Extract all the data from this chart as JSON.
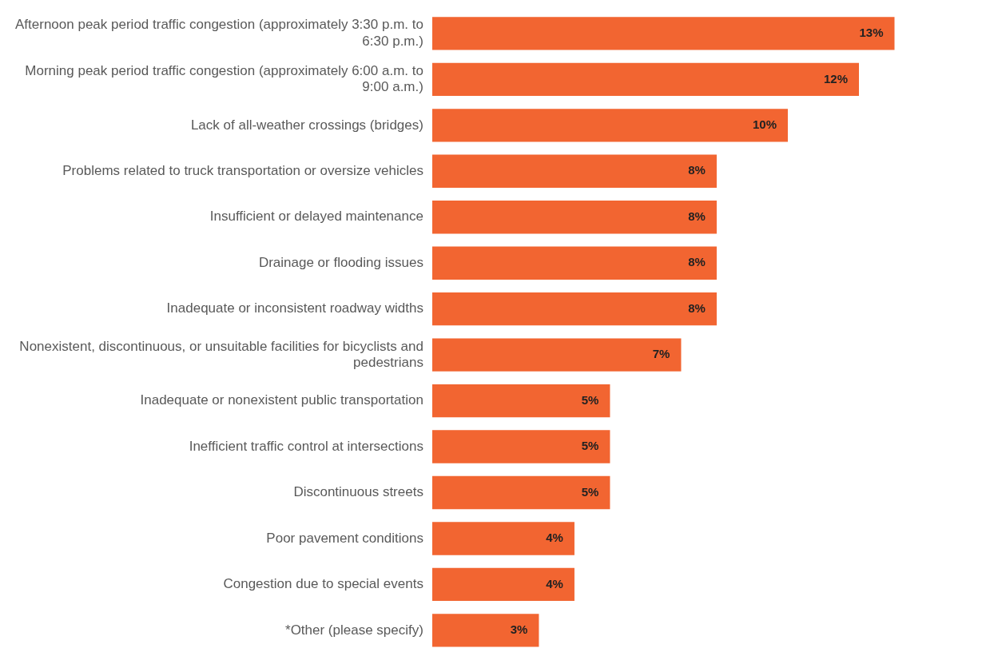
{
  "chart_data": {
    "type": "bar",
    "orientation": "horizontal",
    "data_labels": true,
    "value_labels": [
      "13%",
      "12%",
      "10%",
      "8%",
      "8%",
      "8%",
      "8%",
      "7%",
      "5%",
      "5%",
      "5%",
      "4%",
      "4%",
      "3%"
    ],
    "categories": [
      "Afternoon peak period traffic congestion (approximately 3:30 p.m. to 6:30 p.m.)",
      "Morning peak period traffic congestion (approximately 6:00 a.m. to 9:00 a.m.)",
      "Lack of all-weather crossings (bridges)",
      "Problems related to truck transportation or oversize vehicles",
      "Insufficient or delayed maintenance",
      "Drainage or flooding issues",
      "Inadequate or inconsistent roadway widths",
      "Nonexistent, discontinuous, or unsuitable facilities for bicyclists and pedestrians",
      "Inadequate or nonexistent public transportation",
      "Inefficient traffic control at intersections",
      "Discontinuous streets",
      "Poor pavement conditions",
      "Congestion due to special events",
      "*Other (please specify)"
    ],
    "values": [
      13,
      12,
      10,
      8,
      8,
      8,
      8,
      7,
      5,
      5,
      5,
      4,
      4,
      3
    ],
    "color": "#f26531"
  }
}
